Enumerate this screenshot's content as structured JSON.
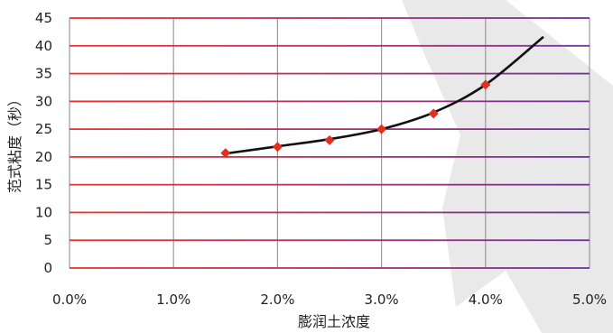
{
  "chart_data": {
    "type": "scatter",
    "title": "",
    "xlabel": "膨润土浓度",
    "ylabel": "范式粘度（秒）",
    "xlim": [
      0,
      0.05
    ],
    "ylim": [
      0,
      45
    ],
    "x_ticks": [
      0,
      0.01,
      0.02,
      0.03,
      0.04,
      0.05
    ],
    "x_tick_labels": [
      "0.0%",
      "1.0%",
      "2.0%",
      "3.0%",
      "4.0%",
      "5.0%"
    ],
    "y_ticks": [
      0,
      5,
      10,
      15,
      20,
      25,
      30,
      35,
      40,
      45
    ],
    "y_tick_labels": [
      "0",
      "5",
      "10",
      "15",
      "20",
      "25",
      "30",
      "35",
      "40",
      "45"
    ],
    "grid": true,
    "legend": "none",
    "series": [
      {
        "marker": "diamond",
        "color": "#e03020",
        "x": [
          0.015,
          0.02,
          0.025,
          0.03,
          0.035,
          0.04
        ],
        "y": [
          20.7,
          21.8,
          23.0,
          25.0,
          27.8,
          33.0
        ]
      }
    ],
    "trendline": {
      "type": "exponential",
      "color": "#111111",
      "x": [
        0.015,
        0.02,
        0.025,
        0.03,
        0.035,
        0.04,
        0.0455
      ],
      "y": [
        20.6,
        21.9,
        23.2,
        25.0,
        28.0,
        33.0,
        41.5
      ]
    },
    "colors": {
      "gridline_left": "#f0302a",
      "gridline_right": "#7030a0",
      "vertical_grid": "#9a9a9a",
      "background_shape": "#cfcfcf"
    }
  }
}
